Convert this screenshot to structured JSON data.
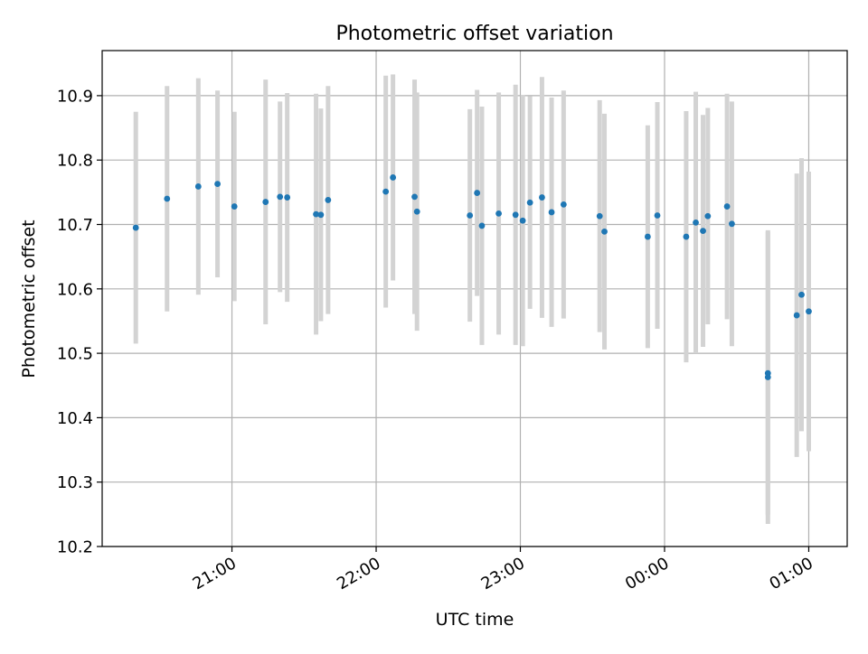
{
  "chart_data": {
    "type": "scatter",
    "title": "Photometric offset variation",
    "xlabel": "UTC time",
    "ylabel": "Photometric offset",
    "x_is_time": true,
    "x_range": [
      "20:06",
      "01:16"
    ],
    "ylim": [
      10.2,
      10.97
    ],
    "x_ticks": [
      "21:00",
      "22:00",
      "23:00",
      "00:00",
      "01:00"
    ],
    "y_ticks": [
      10.2,
      10.3,
      10.4,
      10.5,
      10.6,
      10.7,
      10.8,
      10.9
    ],
    "grid": true,
    "marker_color": "#1f77b4",
    "errorbar_color": "#d3d3d3",
    "points": [
      {
        "t": "20:20",
        "y": 10.695,
        "err": 0.18
      },
      {
        "t": "20:33",
        "y": 10.74,
        "err": 0.175
      },
      {
        "t": "20:46",
        "y": 10.759,
        "err": 0.168
      },
      {
        "t": "20:54",
        "y": 10.763,
        "err": 0.145
      },
      {
        "t": "21:01",
        "y": 10.728,
        "err": 0.147
      },
      {
        "t": "21:14",
        "y": 10.735,
        "err": 0.19
      },
      {
        "t": "21:20",
        "y": 10.743,
        "err": 0.148
      },
      {
        "t": "21:23",
        "y": 10.742,
        "err": 0.162
      },
      {
        "t": "21:35",
        "y": 10.716,
        "err": 0.187
      },
      {
        "t": "21:37",
        "y": 10.715,
        "err": 0.165
      },
      {
        "t": "21:40",
        "y": 10.738,
        "err": 0.177
      },
      {
        "t": "22:04",
        "y": 10.751,
        "err": 0.18
      },
      {
        "t": "22:07",
        "y": 10.773,
        "err": 0.16
      },
      {
        "t": "22:16",
        "y": 10.743,
        "err": 0.182
      },
      {
        "t": "22:17",
        "y": 10.72,
        "err": 0.185
      },
      {
        "t": "22:39",
        "y": 10.714,
        "err": 0.165
      },
      {
        "t": "22:42",
        "y": 10.749,
        "err": 0.16
      },
      {
        "t": "22:44",
        "y": 10.698,
        "err": 0.185
      },
      {
        "t": "22:51",
        "y": 10.717,
        "err": 0.188
      },
      {
        "t": "22:58",
        "y": 10.715,
        "err": 0.202
      },
      {
        "t": "23:01",
        "y": 10.706,
        "err": 0.195
      },
      {
        "t": "23:04",
        "y": 10.734,
        "err": 0.165
      },
      {
        "t": "23:09",
        "y": 10.742,
        "err": 0.187
      },
      {
        "t": "23:13",
        "y": 10.719,
        "err": 0.178
      },
      {
        "t": "23:18",
        "y": 10.731,
        "err": 0.177
      },
      {
        "t": "23:33",
        "y": 10.713,
        "err": 0.18
      },
      {
        "t": "23:35",
        "y": 10.689,
        "err": 0.183
      },
      {
        "t": "23:53",
        "y": 10.681,
        "err": 0.173
      },
      {
        "t": "23:57",
        "y": 10.714,
        "err": 0.176
      },
      {
        "t": "00:09",
        "y": 10.681,
        "err": 0.195
      },
      {
        "t": "00:13",
        "y": 10.703,
        "err": 0.203
      },
      {
        "t": "00:16",
        "y": 10.69,
        "err": 0.18
      },
      {
        "t": "00:18",
        "y": 10.713,
        "err": 0.168
      },
      {
        "t": "00:26",
        "y": 10.728,
        "err": 0.175
      },
      {
        "t": "00:28",
        "y": 10.701,
        "err": 0.19
      },
      {
        "t": "00:43",
        "y": 10.469,
        "err": 0.22
      },
      {
        "t": "00:43",
        "y": 10.463,
        "err": 0.228
      },
      {
        "t": "00:55",
        "y": 10.559,
        "err": 0.22
      },
      {
        "t": "00:57",
        "y": 10.591,
        "err": 0.212
      },
      {
        "t": "01:00",
        "y": 10.565,
        "err": 0.217
      }
    ]
  }
}
